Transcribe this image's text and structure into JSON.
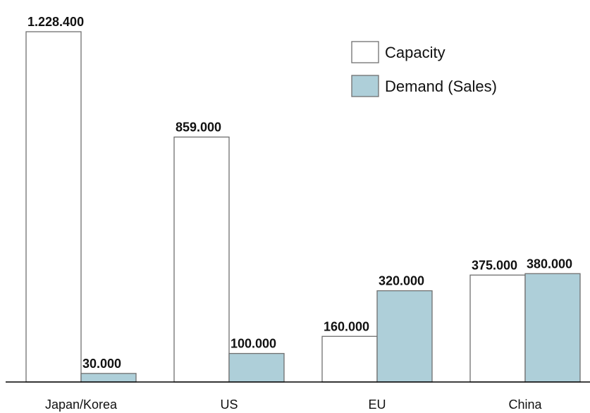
{
  "chart_data": {
    "type": "bar",
    "title": "",
    "xlabel": "",
    "ylabel": "",
    "categories": [
      "Japan/Korea",
      "US",
      "EU",
      "China"
    ],
    "series": [
      {
        "name": "Capacity",
        "values": [
          1228400,
          859000,
          160000,
          375000
        ],
        "labels": [
          "1.228.400",
          "859.000",
          "160.000",
          "375.000"
        ],
        "color": "#ffffff"
      },
      {
        "name": "Demand (Sales)",
        "values": [
          30000,
          100000,
          320000,
          380000
        ],
        "labels": [
          "30.000",
          "100.000",
          "320.000",
          "380.000"
        ],
        "color": "#aecfd9"
      }
    ],
    "ylim": [
      0,
      1228400
    ],
    "grid": false,
    "legend_position": "top-right",
    "colors": {
      "bar_outline": "#6f6f6f",
      "axis": "#000000",
      "text": "#111111"
    }
  }
}
